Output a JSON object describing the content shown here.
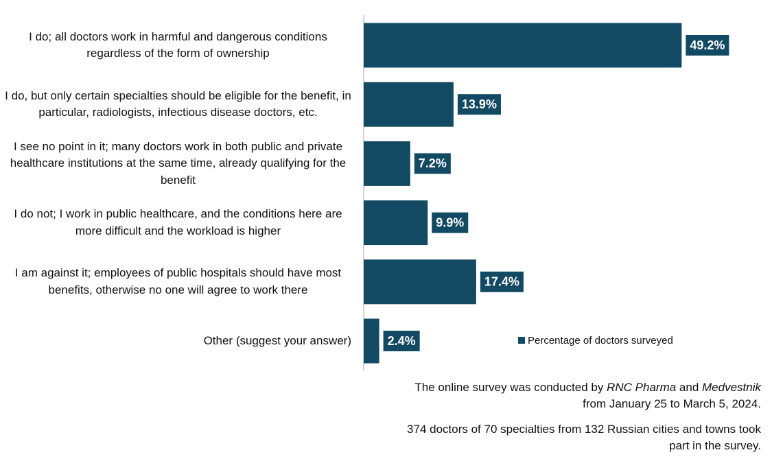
{
  "chart_data": {
    "type": "barh",
    "categories": [
      "I do; all doctors work in harmful and dangerous conditions regardless of the form of ownership",
      "I do, but only certain specialties should be eligible for the benefit, in particular, radiologists, infectious disease doctors, etc.",
      "I see no point in it; many doctors work in both public and private healthcare institutions at the same time, already qualifying for the benefit",
      "I do not; I work in public healthcare, and the conditions here are more difficult and the workload is higher",
      "I am against it; employees of public hospitals should have most benefits, otherwise no one will agree to work there",
      "Other (suggest your answer)"
    ],
    "series": [
      {
        "name": "Percentage of doctors surveyed",
        "color": "#134a63",
        "values": [
          49.2,
          13.9,
          7.2,
          9.9,
          17.4,
          2.4
        ],
        "value_labels": [
          "49.2%",
          "13.9%",
          "7.2%",
          "9.9%",
          "17.4%",
          "2.4%"
        ]
      }
    ],
    "xlim": [
      0,
      55
    ],
    "notes": [
      [
        {
          "text": "The online survey was conducted by "
        },
        {
          "text": "RNC Pharma",
          "italic": true
        },
        {
          "text": " and "
        },
        {
          "text": "Medvestnik",
          "italic": true
        },
        {
          "text": " from January 25 to March 5, 2024."
        }
      ],
      [
        {
          "text": "374 doctors of 70 specialties from 132 Russian cities and towns took part in the survey."
        }
      ]
    ]
  }
}
